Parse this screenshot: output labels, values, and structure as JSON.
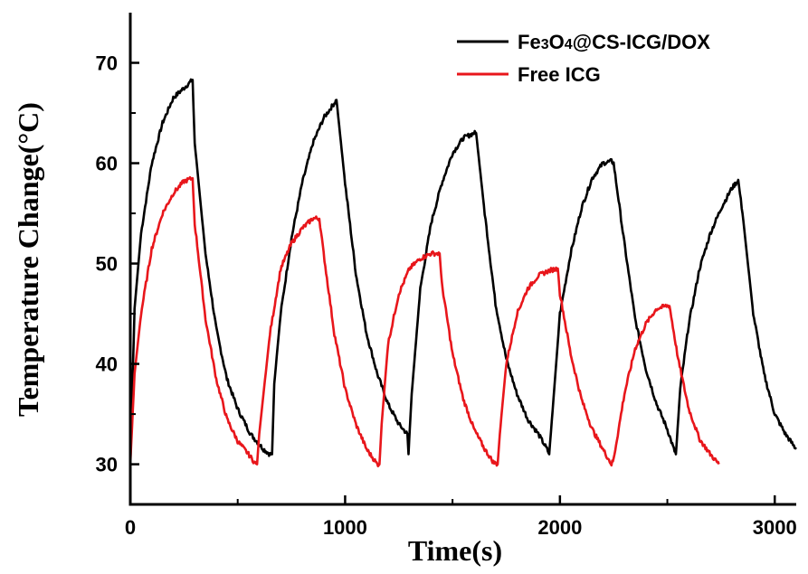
{
  "chart_data": {
    "type": "line",
    "title": "",
    "xlabel": "Time(s)",
    "ylabel": "Temperature Change(°C)",
    "xlim": [
      0,
      3100
    ],
    "ylim": [
      26,
      75
    ],
    "x_ticks": [
      0,
      1000,
      2000,
      3000
    ],
    "y_ticks": [
      30,
      40,
      50,
      60,
      70
    ],
    "grid": false,
    "legend_position": "top-right",
    "series": [
      {
        "name_parts": [
          {
            "text": "Fe",
            "sub": false
          },
          {
            "text": "3",
            "sub": true
          },
          {
            "text": "O",
            "sub": false
          },
          {
            "text": "4",
            "sub": true
          },
          {
            "text": "@CS-ICG/DOX",
            "sub": false
          }
        ],
        "color": "#000000",
        "x": [
          0,
          20,
          50,
          100,
          150,
          200,
          250,
          290,
          300,
          350,
          400,
          450,
          500,
          560,
          620,
          650,
          660,
          670,
          700,
          750,
          800,
          850,
          900,
          950,
          960,
          1000,
          1050,
          1100,
          1150,
          1200,
          1250,
          1290,
          1295,
          1310,
          1350,
          1400,
          1450,
          1500,
          1550,
          1600,
          1610,
          1650,
          1700,
          1750,
          1800,
          1850,
          1900,
          1940,
          1950,
          1970,
          2000,
          2050,
          2100,
          2150,
          2200,
          2240,
          2250,
          2300,
          2350,
          2400,
          2450,
          2500,
          2530,
          2540,
          2560,
          2600,
          2650,
          2700,
          2750,
          2800,
          2830,
          2850,
          2900,
          2950,
          3000,
          3050,
          3100
        ],
        "y": [
          30,
          45.5,
          53,
          60,
          64,
          66.5,
          67.5,
          68.3,
          62,
          51,
          43.5,
          38.5,
          35.5,
          33,
          31.5,
          31,
          31,
          38,
          45,
          52.5,
          58,
          62,
          64.5,
          66,
          66.3,
          58,
          49,
          43,
          39,
          36,
          34,
          33,
          31,
          37,
          47.5,
          54,
          58,
          61,
          62.5,
          63,
          63,
          55,
          46,
          40.5,
          37,
          34.5,
          33,
          31.5,
          31,
          36.5,
          45,
          51,
          55.5,
          58.5,
          60,
          60.2,
          60,
          52,
          44.5,
          39.5,
          36,
          33.5,
          31.5,
          31,
          37.5,
          44,
          49.5,
          53,
          55.5,
          57.5,
          58.3,
          55,
          45,
          39,
          35,
          33,
          31.5
        ]
      },
      {
        "name_parts": [
          {
            "text": "Free ICG",
            "sub": false
          }
        ],
        "color": "#e8161b",
        "x": [
          0,
          20,
          50,
          100,
          150,
          200,
          250,
          290,
          300,
          350,
          400,
          450,
          500,
          550,
          585,
          590,
          600,
          650,
          700,
          750,
          800,
          850,
          880,
          900,
          950,
          1000,
          1050,
          1100,
          1150,
          1160,
          1170,
          1200,
          1250,
          1300,
          1350,
          1400,
          1440,
          1450,
          1500,
          1550,
          1600,
          1650,
          1690,
          1710,
          1720,
          1750,
          1800,
          1850,
          1900,
          1950,
          1990,
          2000,
          2050,
          2100,
          2150,
          2200,
          2240,
          2250,
          2300,
          2350,
          2400,
          2450,
          2500,
          2510,
          2550,
          2600,
          2650,
          2700,
          2740
        ],
        "y": [
          30,
          39,
          45,
          51.5,
          55,
          57,
          58.2,
          58.5,
          54,
          44.5,
          38.5,
          34.5,
          32.3,
          31,
          30,
          30,
          33,
          43,
          49.5,
          52,
          53.5,
          54.5,
          54.5,
          51,
          43,
          37.5,
          34,
          31.5,
          30,
          30,
          34,
          42,
          47,
          49.5,
          50.5,
          51,
          51,
          48,
          41,
          36.5,
          33.5,
          31.5,
          30.2,
          30,
          33,
          40,
          45,
          47.5,
          48.8,
          49.3,
          49.5,
          47,
          41,
          36.5,
          33.5,
          31.5,
          30,
          30.5,
          37,
          41.5,
          44,
          45.5,
          45.8,
          45.8,
          40.5,
          35.5,
          32.5,
          31,
          30
        ]
      }
    ]
  }
}
